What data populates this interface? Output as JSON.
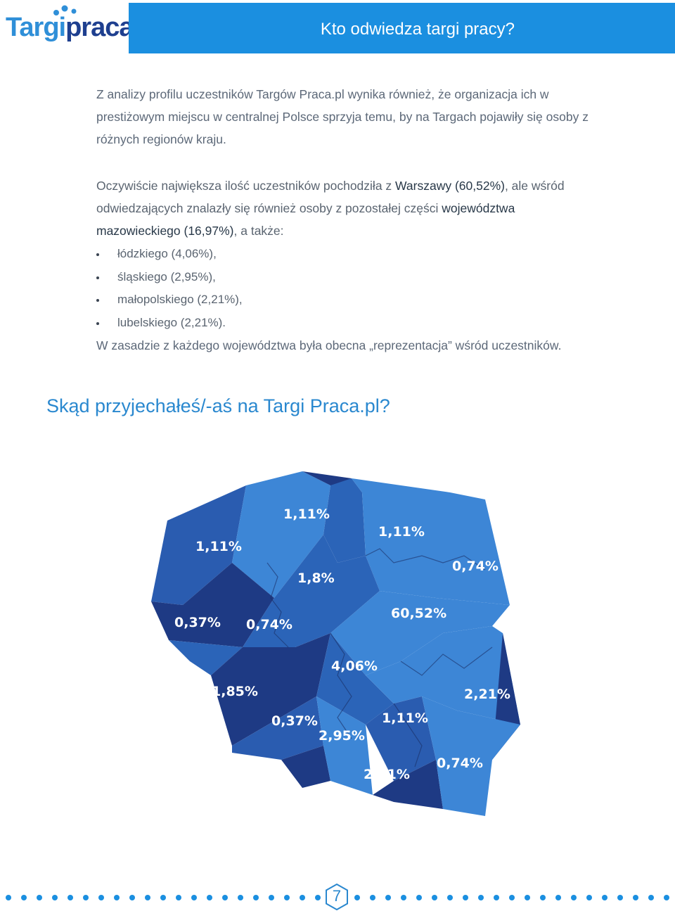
{
  "logo": {
    "part1": "Targi",
    "part2": "praca.pl"
  },
  "header": {
    "title": "Kto odwiedza targi pracy?"
  },
  "intro": "Z analizy profilu uczestników Targów Praca.pl wynika również, że organizacja ich w prestiżowym miejscu w centralnej Polsce sprzyja temu, by na Targach pojawiły się osoby z różnych regionów kraju.",
  "para2": {
    "t1": "Oczywiście największa ilość uczestników pochodziła z ",
    "h1": "Warszawy (60,52%)",
    "t2": ", ale wśród odwiedzających znalazły się również osoby z pozostałej części ",
    "h2": "województwa mazowieckiego (16,97%)",
    "t3": ", a także:"
  },
  "bullets": [
    "łódzkiego (4,06%),",
    "śląskiego (2,95%),",
    "małopolskiego (2,21%),",
    "lubelskiego (2,21%)."
  ],
  "para3": "W zasadzie z każdego województwa była obecna „reprezentacja” wśród uczestników.",
  "section_title": "Skąd przyjechałeś/-aś na Targi Praca.pl?",
  "map_labels": [
    "1,11%",
    "1,11%",
    "1,11%",
    "0,74%",
    "1,8%",
    "0,37%",
    "0,74%",
    "60,52%",
    "4,06%",
    "1,85%",
    "2,21%",
    "0,37%",
    "1,11%",
    "2,95%",
    "0,74%",
    "2,21%"
  ],
  "page_number": "7",
  "colors": {
    "header": "#1b8fe0",
    "title": "#2a88cf",
    "map_dark": "#1e3a84",
    "map_mid": "#2b64b8",
    "map_light": "#3d86d6"
  }
}
